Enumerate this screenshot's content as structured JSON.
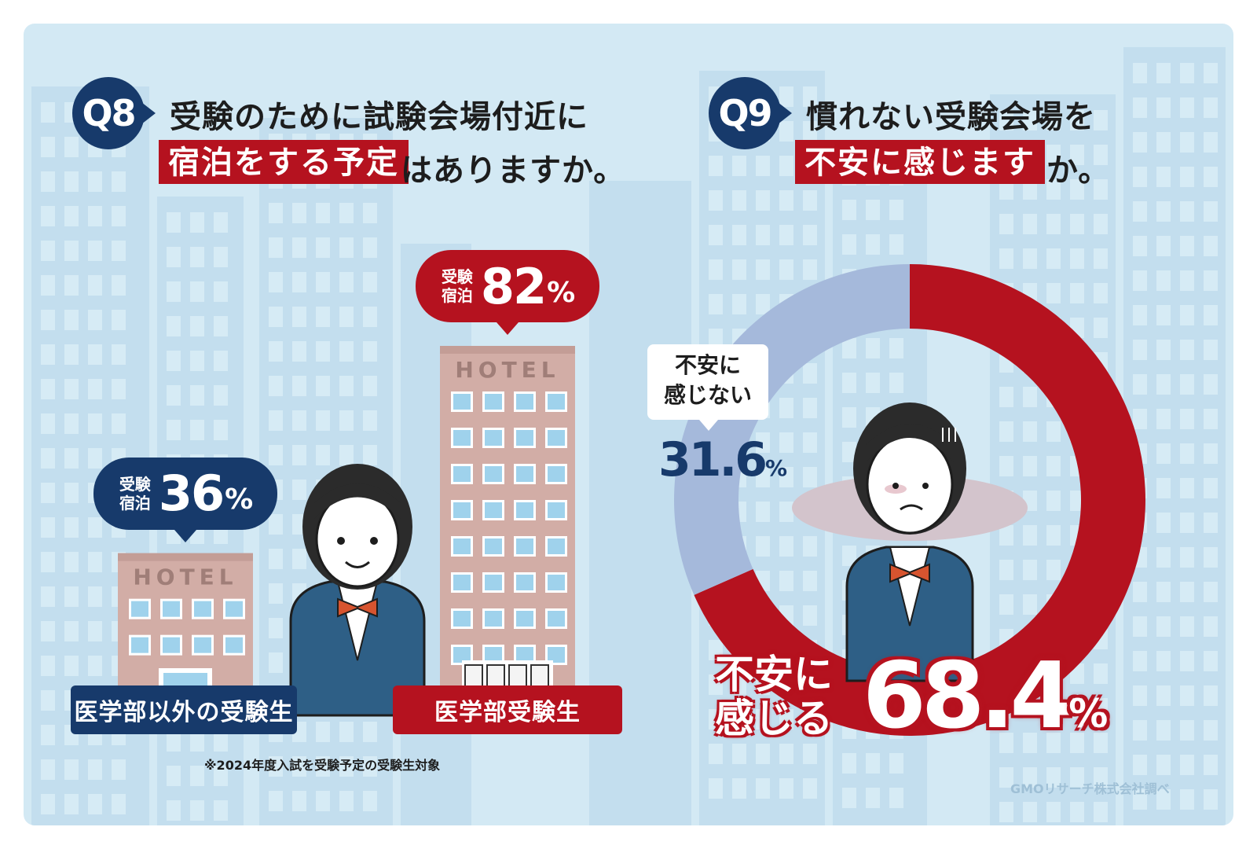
{
  "q8": {
    "badge": "Q8",
    "line1": "受験のために試験会場付近に",
    "highlight": "宿泊をする予定",
    "line2_rest": "はありますか。",
    "note": "※2024年度入試を受験予定の受験生対象"
  },
  "q9": {
    "badge": "Q9",
    "line1": "慣れない受験会場を",
    "highlight": "不安に感じます",
    "line2_rest": "か。"
  },
  "credit": "GMOリサーチ株式会社調べ",
  "hotel_sign": "HOTEL",
  "colors": {
    "red": "#b5121f",
    "navy": "#173a6b",
    "light_blue": "#a5b9db",
    "building": "#d2ada6",
    "background": "#d3e9f4"
  },
  "chart_data": [
    {
      "type": "bar",
      "categories": [
        "医学部以外の受験生",
        "医学部受験生"
      ],
      "bubble_label": "受験宿泊",
      "bubble_label_lines": [
        "受験",
        "宿泊"
      ],
      "values": [
        36,
        82
      ],
      "value_text": [
        "36",
        "82"
      ],
      "unit": "%",
      "ylim": [
        0,
        100
      ]
    },
    {
      "type": "pie",
      "style": "donut",
      "labels": [
        "不安に感じる",
        "不安に感じない"
      ],
      "label_lines": [
        [
          "不安に",
          "感じる"
        ],
        [
          "不安に",
          "感じない"
        ]
      ],
      "values": [
        68.4,
        31.6
      ],
      "value_text": [
        "68.4",
        "31.6"
      ],
      "unit": "%",
      "colors": [
        "#b5121f",
        "#a5b9db"
      ]
    }
  ]
}
